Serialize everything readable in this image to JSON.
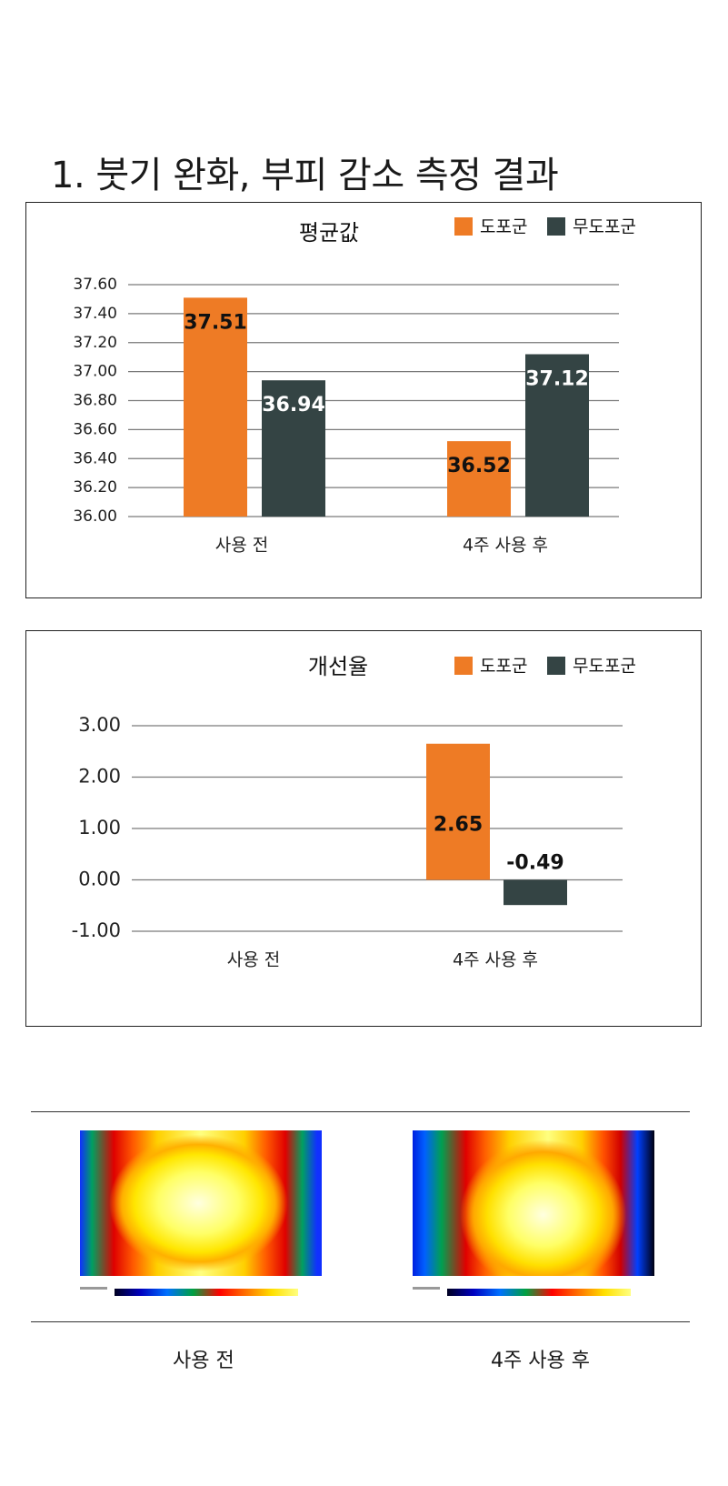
{
  "page": {
    "title": "1. 붓기 완화, 부피 감소 측정 결과"
  },
  "colors": {
    "group_a": "#ee7b25",
    "group_b": "#344444",
    "grid": "#7a7a7a"
  },
  "chart_data": [
    {
      "type": "bar",
      "title": "평균값",
      "categories": [
        "사용 전",
        "4주 사용 후"
      ],
      "series": [
        {
          "name": "도포군",
          "values": [
            37.51,
            36.52
          ]
        },
        {
          "name": "무도포군",
          "values": [
            36.94,
            37.12
          ]
        }
      ],
      "data_labels": {
        "도포군": [
          "37.51",
          "36.52"
        ],
        "무도포군": [
          "36.94",
          "37.12"
        ]
      },
      "y_ticks": [
        "36.00",
        "36.20",
        "36.40",
        "36.60",
        "36.80",
        "37.00",
        "37.20",
        "37.40",
        "37.60"
      ],
      "ylim": [
        36.0,
        37.6
      ],
      "grid": true,
      "legend_position": "top-right"
    },
    {
      "type": "bar",
      "title": "개선율",
      "categories": [
        "사용 전",
        "4주 사용 후"
      ],
      "series": [
        {
          "name": "도포군",
          "values": [
            null,
            2.65
          ]
        },
        {
          "name": "무도포군",
          "values": [
            null,
            -0.49
          ]
        }
      ],
      "data_labels": {
        "도포군": [
          "",
          "2.65"
        ],
        "무도포군": [
          "",
          "-0.49"
        ]
      },
      "y_ticks": [
        "-1.00",
        "0.00",
        "1.00",
        "2.00",
        "3.00"
      ],
      "ylim": [
        -1.0,
        3.0
      ],
      "grid": true,
      "legend_position": "top-right"
    }
  ],
  "thermal_images": [
    {
      "caption": "사용 전"
    },
    {
      "caption": "4주 사용 후"
    }
  ]
}
